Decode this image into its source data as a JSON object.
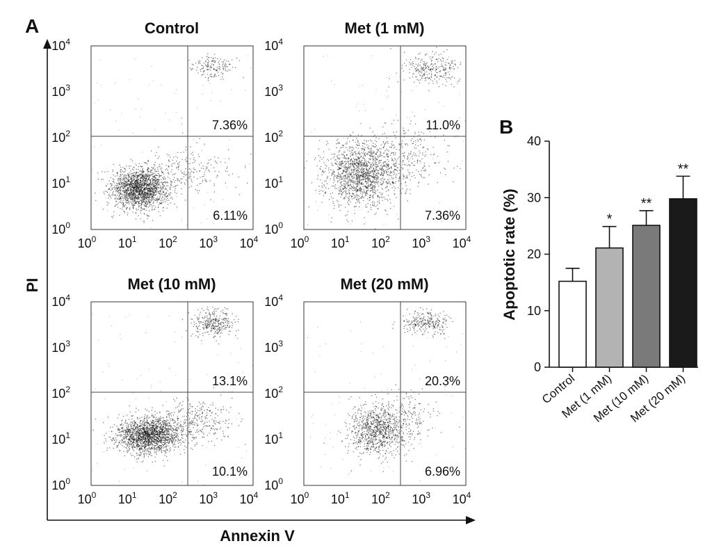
{
  "panel_a": {
    "letter": "A",
    "y_axis_label": "PI",
    "x_axis_label": "Annexin V",
    "quadrant_gate_log10": {
      "x": 2.4,
      "y": 2.0
    },
    "tick_base": "10",
    "tick_exponents": [
      "0",
      "1",
      "2",
      "3",
      "4"
    ]
  },
  "panel_b": {
    "letter": "B"
  },
  "chart_data": [
    {
      "type": "scatter",
      "title": "Control",
      "xlabel": "Annexin V",
      "ylabel": "PI",
      "x_scale": "log",
      "y_scale": "log",
      "xlim": [
        1,
        10000
      ],
      "ylim": [
        1,
        10000
      ],
      "quadrant_labels": {
        "upper_right": "7.36%",
        "lower_right": "6.11%"
      },
      "populations": [
        {
          "region": "lower-left cluster",
          "center_log10": [
            1.2,
            0.9
          ],
          "spread": [
            0.35,
            0.22
          ],
          "count": 1800
        },
        {
          "region": "lower-right tail",
          "center_log10": [
            2.4,
            1.3
          ],
          "spread": [
            0.5,
            0.25
          ],
          "count": 220
        },
        {
          "region": "upper-right cluster",
          "center_log10": [
            3.0,
            3.55
          ],
          "spread": [
            0.25,
            0.12
          ],
          "count": 160
        }
      ]
    },
    {
      "type": "scatter",
      "title": "Met (1 mM)",
      "xlabel": "Annexin V",
      "ylabel": "PI",
      "x_scale": "log",
      "y_scale": "log",
      "xlim": [
        1,
        10000
      ],
      "ylim": [
        1,
        10000
      ],
      "quadrant_labels": {
        "upper_right": "11.0%",
        "lower_right": "7.36%"
      },
      "populations": [
        {
          "region": "lower-left cluster",
          "center_log10": [
            1.4,
            1.2
          ],
          "spread": [
            0.45,
            0.35
          ],
          "count": 1500
        },
        {
          "region": "lower-right tail",
          "center_log10": [
            2.5,
            1.6
          ],
          "spread": [
            0.55,
            0.35
          ],
          "count": 300
        },
        {
          "region": "upper-right cluster",
          "center_log10": [
            3.1,
            3.5
          ],
          "spread": [
            0.35,
            0.18
          ],
          "count": 280
        }
      ]
    },
    {
      "type": "scatter",
      "title": "Met (10 mM)",
      "xlabel": "Annexin V",
      "ylabel": "PI",
      "x_scale": "log",
      "y_scale": "log",
      "xlim": [
        1,
        10000
      ],
      "ylim": [
        1,
        10000
      ],
      "quadrant_labels": {
        "upper_right": "13.1%",
        "lower_right": "10.1%"
      },
      "populations": [
        {
          "region": "lower-left cluster",
          "center_log10": [
            1.4,
            1.1
          ],
          "spread": [
            0.4,
            0.2
          ],
          "count": 1800
        },
        {
          "region": "lower-right tail",
          "center_log10": [
            2.6,
            1.4
          ],
          "spread": [
            0.45,
            0.25
          ],
          "count": 320
        },
        {
          "region": "upper-right cluster",
          "center_log10": [
            3.0,
            3.55
          ],
          "spread": [
            0.25,
            0.15
          ],
          "count": 320
        }
      ]
    },
    {
      "type": "scatter",
      "title": "Met (20 mM)",
      "xlabel": "Annexin V",
      "ylabel": "PI",
      "x_scale": "log",
      "y_scale": "log",
      "xlim": [
        1,
        10000
      ],
      "ylim": [
        1,
        10000
      ],
      "quadrant_labels": {
        "upper_right": "20.3%",
        "lower_right": "6.96%"
      },
      "populations": [
        {
          "region": "lower-left cluster",
          "center_log10": [
            1.8,
            1.2
          ],
          "spread": [
            0.35,
            0.28
          ],
          "count": 900
        },
        {
          "region": "lower-right tail",
          "center_log10": [
            2.5,
            1.5
          ],
          "spread": [
            0.4,
            0.3
          ],
          "count": 200
        },
        {
          "region": "upper-right cluster",
          "center_log10": [
            3.0,
            3.55
          ],
          "spread": [
            0.3,
            0.12
          ],
          "count": 260
        }
      ]
    },
    {
      "type": "bar",
      "ylabel": "Apoptotic rate (%)",
      "xlabel": "",
      "categories": [
        "Control",
        "Met (1 mM)",
        "Met (10 mM)",
        "Met (20 mM)"
      ],
      "values": [
        15.2,
        21.1,
        25.1,
        29.8
      ],
      "errors": [
        2.3,
        3.8,
        2.6,
        4.0
      ],
      "significance": [
        "",
        "*",
        "**",
        "**"
      ],
      "bar_colors": [
        "#ffffff",
        "#b3b3b3",
        "#7a7a7a",
        "#1a1a1a"
      ],
      "ylim": [
        0,
        40
      ],
      "yticks": [
        0,
        10,
        20,
        30,
        40
      ]
    }
  ]
}
